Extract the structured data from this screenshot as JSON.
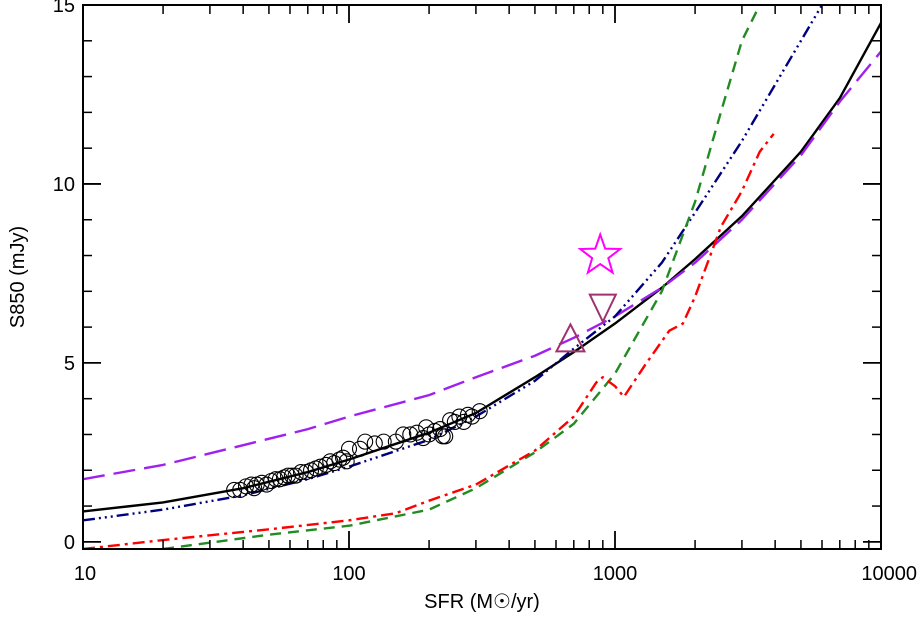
{
  "chart_data": {
    "type": "scatter",
    "xlabel": "SFR (M☉/yr)",
    "ylabel": "S850 (mJy)",
    "x_scale": "log",
    "xlim": [
      10,
      10000
    ],
    "ylim": [
      -0.2,
      15
    ],
    "x_ticks": [
      10,
      100,
      1000,
      10000
    ],
    "x_tick_labels": [
      "10",
      "100",
      "1000",
      "10000"
    ],
    "y_ticks": [
      0,
      5,
      10,
      15
    ],
    "y_tick_labels": [
      "0",
      "5",
      "10",
      "15"
    ],
    "grid": false,
    "curves": [
      {
        "color": "#000000",
        "style": "solid",
        "points": [
          [
            10,
            0.85
          ],
          [
            20,
            1.1
          ],
          [
            40,
            1.5
          ],
          [
            70,
            1.95
          ],
          [
            100,
            2.3
          ],
          [
            200,
            3.05
          ],
          [
            300,
            3.6
          ],
          [
            500,
            4.6
          ],
          [
            700,
            5.3
          ],
          [
            1000,
            6.1
          ],
          [
            1500,
            7.1
          ],
          [
            2000,
            7.9
          ],
          [
            3000,
            9.1
          ],
          [
            5000,
            10.9
          ],
          [
            7000,
            12.4
          ],
          [
            10000,
            14.5
          ]
        ]
      },
      {
        "color": "#a020f0",
        "style": "long-dash",
        "points": [
          [
            10,
            1.75
          ],
          [
            20,
            2.15
          ],
          [
            40,
            2.7
          ],
          [
            70,
            3.15
          ],
          [
            100,
            3.5
          ],
          [
            200,
            4.1
          ],
          [
            300,
            4.6
          ],
          [
            500,
            5.2
          ],
          [
            700,
            5.7
          ],
          [
            1000,
            6.3
          ],
          [
            1500,
            7.1
          ],
          [
            2000,
            7.8
          ],
          [
            3000,
            9.0
          ],
          [
            5000,
            10.8
          ],
          [
            7000,
            12.3
          ],
          [
            10000,
            13.7
          ]
        ]
      },
      {
        "color": "#00007f",
        "style": "dash-dot-dot-dot",
        "points": [
          [
            10,
            0.6
          ],
          [
            20,
            0.9
          ],
          [
            40,
            1.3
          ],
          [
            70,
            1.75
          ],
          [
            100,
            2.1
          ],
          [
            200,
            2.85
          ],
          [
            300,
            3.5
          ],
          [
            500,
            4.5
          ],
          [
            700,
            5.4
          ],
          [
            1000,
            6.3
          ],
          [
            1500,
            7.8
          ],
          [
            2000,
            9.2
          ],
          [
            3000,
            11.2
          ],
          [
            5000,
            14.0
          ],
          [
            6000,
            15.0
          ]
        ]
      },
      {
        "color": "#228b22",
        "style": "dash",
        "points": [
          [
            20,
            -0.2
          ],
          [
            50,
            0.2
          ],
          [
            100,
            0.45
          ],
          [
            200,
            0.9
          ],
          [
            300,
            1.5
          ],
          [
            500,
            2.5
          ],
          [
            700,
            3.3
          ],
          [
            1000,
            4.7
          ],
          [
            1500,
            7.0
          ],
          [
            2000,
            9.5
          ],
          [
            2500,
            12.0
          ],
          [
            3000,
            14.0
          ],
          [
            3500,
            15.0
          ]
        ]
      },
      {
        "color": "#ff0000",
        "style": "dash-dot",
        "points": [
          [
            10,
            -0.2
          ],
          [
            20,
            0.05
          ],
          [
            50,
            0.35
          ],
          [
            100,
            0.6
          ],
          [
            150,
            0.8
          ],
          [
            200,
            1.15
          ],
          [
            300,
            1.6
          ],
          [
            500,
            2.55
          ],
          [
            700,
            3.5
          ],
          [
            850,
            4.45
          ],
          [
            900,
            4.6
          ],
          [
            1000,
            4.35
          ],
          [
            1080,
            4.05
          ],
          [
            1300,
            4.95
          ],
          [
            1600,
            5.9
          ],
          [
            1800,
            6.1
          ],
          [
            2000,
            6.85
          ],
          [
            2500,
            8.8
          ],
          [
            3000,
            9.8
          ],
          [
            3500,
            10.9
          ],
          [
            3950,
            11.4
          ]
        ]
      }
    ],
    "scatter_points": [
      [
        37,
        1.45
      ],
      [
        39,
        1.45
      ],
      [
        41,
        1.55
      ],
      [
        43,
        1.6
      ],
      [
        44,
        1.5
      ],
      [
        45,
        1.6
      ],
      [
        47,
        1.65
      ],
      [
        49,
        1.6
      ],
      [
        51,
        1.7
      ],
      [
        53,
        1.75
      ],
      [
        55,
        1.75
      ],
      [
        57,
        1.8
      ],
      [
        59,
        1.85
      ],
      [
        61,
        1.85
      ],
      [
        63,
        1.85
      ],
      [
        66,
        1.95
      ],
      [
        69,
        1.95
      ],
      [
        72,
        2.0
      ],
      [
        75,
        2.05
      ],
      [
        78,
        2.1
      ],
      [
        82,
        2.15
      ],
      [
        85,
        2.25
      ],
      [
        88,
        2.2
      ],
      [
        92,
        2.3
      ],
      [
        95,
        2.35
      ],
      [
        98,
        2.25
      ],
      [
        100,
        2.6
      ],
      [
        110,
        2.6
      ],
      [
        115,
        2.8
      ],
      [
        125,
        2.75
      ],
      [
        135,
        2.8
      ],
      [
        150,
        2.8
      ],
      [
        160,
        3.0
      ],
      [
        170,
        3.0
      ],
      [
        180,
        3.05
      ],
      [
        190,
        2.9
      ],
      [
        195,
        3.2
      ],
      [
        200,
        3.0
      ],
      [
        210,
        3.1
      ],
      [
        220,
        3.15
      ],
      [
        225,
        2.95
      ],
      [
        230,
        2.95
      ],
      [
        240,
        3.4
      ],
      [
        250,
        3.35
      ],
      [
        260,
        3.5
      ],
      [
        270,
        3.35
      ],
      [
        280,
        3.55
      ],
      [
        290,
        3.5
      ],
      [
        310,
        3.65
      ]
    ],
    "markers": [
      {
        "shape": "star",
        "x": 880,
        "y": 8.0,
        "color": "#ff00ff"
      },
      {
        "shape": "triangle-down",
        "x": 900,
        "y": 6.6,
        "color": "#a0306e"
      },
      {
        "shape": "triangle-up",
        "x": 680,
        "y": 5.6,
        "color": "#a0306e"
      }
    ]
  }
}
